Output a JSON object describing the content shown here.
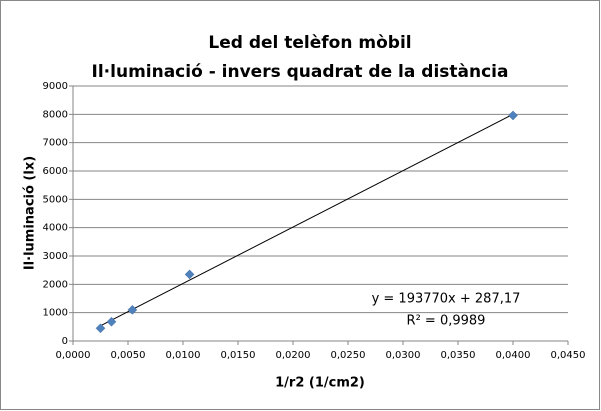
{
  "chart_data": {
    "type": "scatter",
    "title": "Led del telèfon mòbil",
    "subtitle": "Il·luminació - invers quadrat de la distància",
    "x_label": "1/r2  (1/cm2)",
    "y_label": "Il·luminació (lx)",
    "annotations": [
      "y = 193770x + 287,17",
      "R² = 0,9989"
    ],
    "x": [
      0.0025,
      0.0035,
      0.0054,
      0.0106,
      0.04
    ],
    "values": [
      450,
      680,
      1100,
      2350,
      7960
    ],
    "color": "#4f81bd",
    "trendline": true,
    "grid": true,
    "xlim": [
      0,
      0.045
    ],
    "xticks": [
      {
        "value": 0,
        "label": "0,0000"
      },
      {
        "value": 0.005,
        "label": "0,0050"
      },
      {
        "value": 0.01,
        "label": "0,0100"
      },
      {
        "value": 0.015,
        "label": "0,0150"
      },
      {
        "value": 0.02,
        "label": "0,0200"
      },
      {
        "value": 0.025,
        "label": "0,0250"
      },
      {
        "value": 0.03,
        "label": "0,0300"
      },
      {
        "value": 0.035,
        "label": "0,0350"
      },
      {
        "value": 0.04,
        "label": "0,0400"
      },
      {
        "value": 0.045,
        "label": "0,0450"
      }
    ],
    "ylim": [
      0,
      9000
    ],
    "yticks": [
      0,
      1000,
      2000,
      3000,
      4000,
      5000,
      6000,
      7000,
      8000,
      9000
    ]
  }
}
